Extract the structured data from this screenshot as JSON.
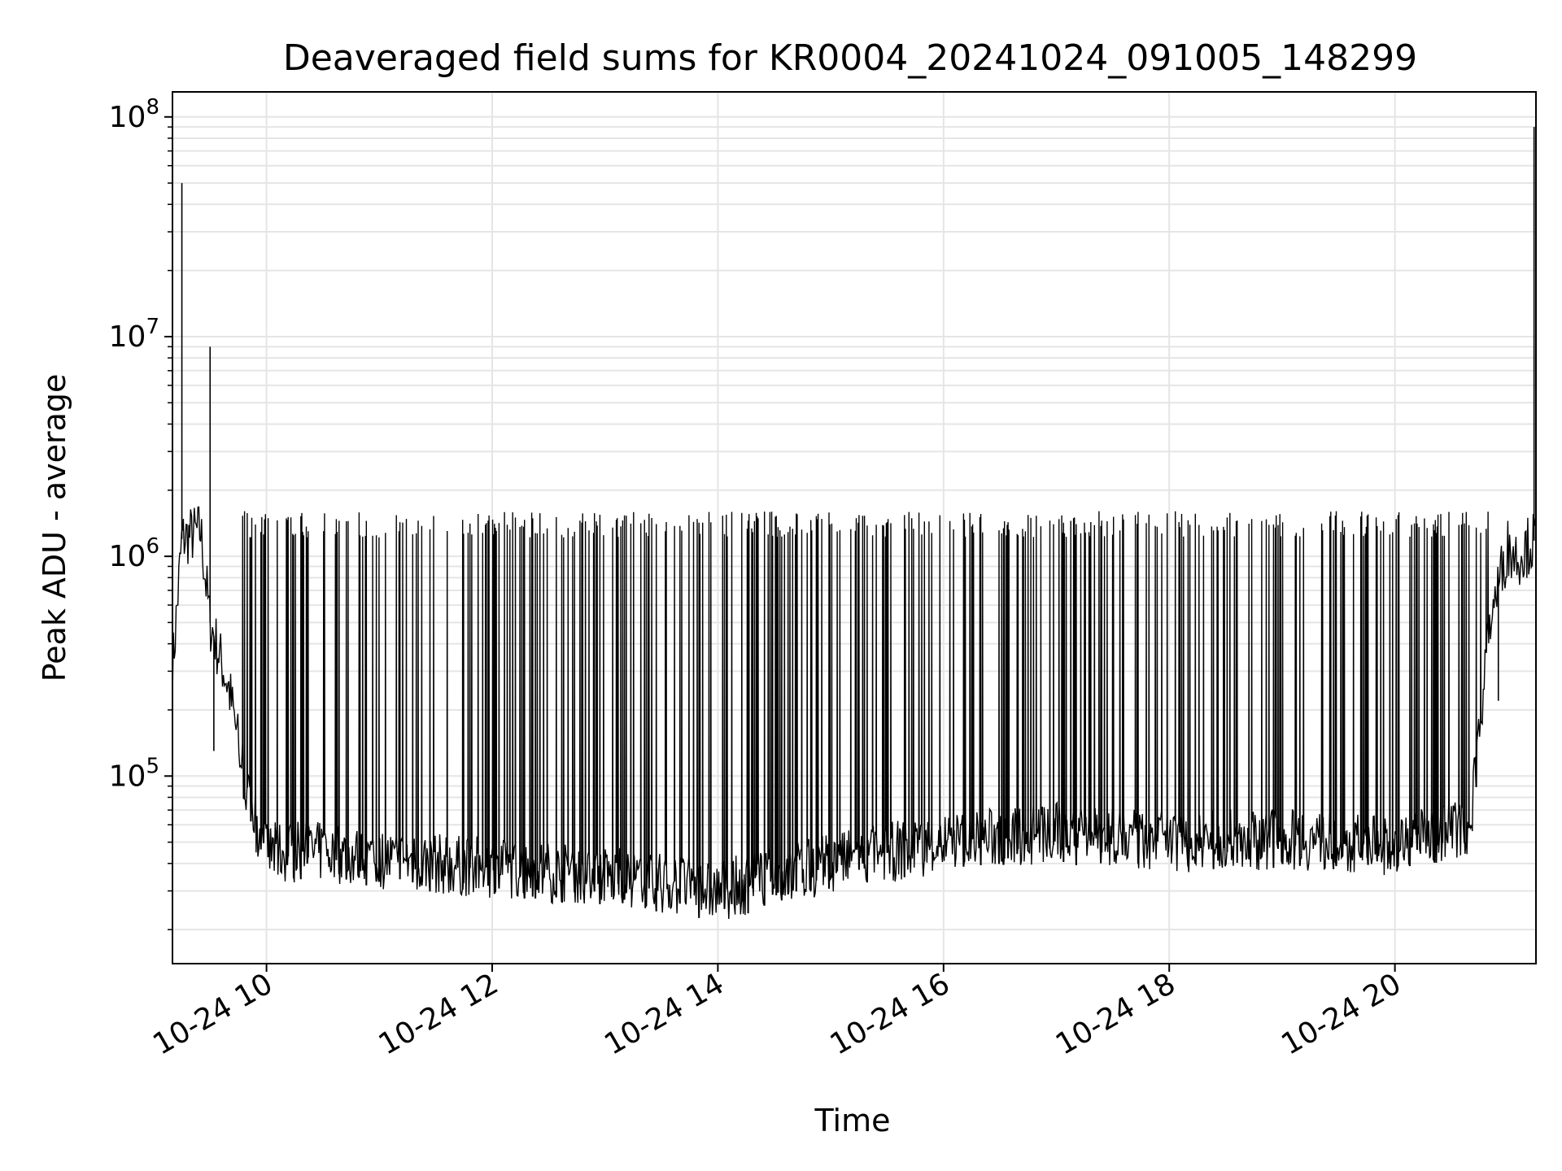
{
  "chart_data": {
    "type": "line",
    "title": "Deaveraged field sums for KR0004_20241024_091005_148299",
    "xlabel": "Time",
    "ylabel": "Peak ADU - average",
    "yscale": "log",
    "grid": true,
    "grid_minor_y": true,
    "line_color": "#000000",
    "grid_color": "#e5e5e5",
    "xlim": [
      "2024-10-24 09:10",
      "2024-10-24 21:15"
    ],
    "ylim": [
      14000,
      130000000
    ],
    "x_ticks": [
      {
        "value": "2024-10-24 10:00",
        "label": "10-24 10"
      },
      {
        "value": "2024-10-24 12:00",
        "label": "10-24 12"
      },
      {
        "value": "2024-10-24 14:00",
        "label": "10-24 14"
      },
      {
        "value": "2024-10-24 16:00",
        "label": "10-24 16"
      },
      {
        "value": "2024-10-24 18:00",
        "label": "10-24 18"
      },
      {
        "value": "2024-10-24 20:00",
        "label": "10-24 20"
      }
    ],
    "y_ticks": [
      {
        "value": 100000,
        "base": "10",
        "exp": "5"
      },
      {
        "value": 1000000,
        "base": "10",
        "exp": "6"
      },
      {
        "value": 10000000,
        "base": "10",
        "exp": "7"
      },
      {
        "value": 100000000,
        "base": "10",
        "exp": "8"
      }
    ],
    "series": [
      {
        "baseline_x": [
          "2024-10-24 09:10",
          "2024-10-24 09:15",
          "2024-10-24 09:25",
          "2024-10-24 09:30",
          "2024-10-24 09:40",
          "2024-10-24 09:50",
          "2024-10-24 10:00",
          "2024-10-24 10:30",
          "2024-10-24 11:00",
          "2024-10-24 12:00",
          "2024-10-24 13:00",
          "2024-10-24 14:00",
          "2024-10-24 15:00",
          "2024-10-24 16:00",
          "2024-10-24 17:00",
          "2024-10-24 18:00",
          "2024-10-24 19:00",
          "2024-10-24 20:00",
          "2024-10-24 20:40",
          "2024-10-24 20:50",
          "2024-10-24 21:00",
          "2024-10-24 21:05",
          "2024-10-24 21:15"
        ],
        "baseline_y": [
          300000,
          1200000,
          1300000,
          500000,
          250000,
          80000,
          45000,
          45000,
          42000,
          38000,
          35000,
          30000,
          40000,
          50000,
          55000,
          50000,
          52000,
          48000,
          60000,
          500000,
          1100000,
          1000000,
          1200000
        ],
        "spike_top_y": 1400000,
        "spike_window": [
          "2024-10-24 09:45",
          "2024-10-24 20:50"
        ],
        "spike_count": 420,
        "spikes": [
          {
            "x": "2024-10-24 09:15",
            "y": 50000000
          },
          {
            "x": "2024-10-24 09:30",
            "y": 9000000
          },
          {
            "x": "2024-10-24 09:32",
            "y": 130000
          },
          {
            "x": "2024-10-24 20:55",
            "y": 220000
          },
          {
            "x": "2024-10-24 21:14",
            "y": 90000000
          }
        ]
      }
    ]
  }
}
